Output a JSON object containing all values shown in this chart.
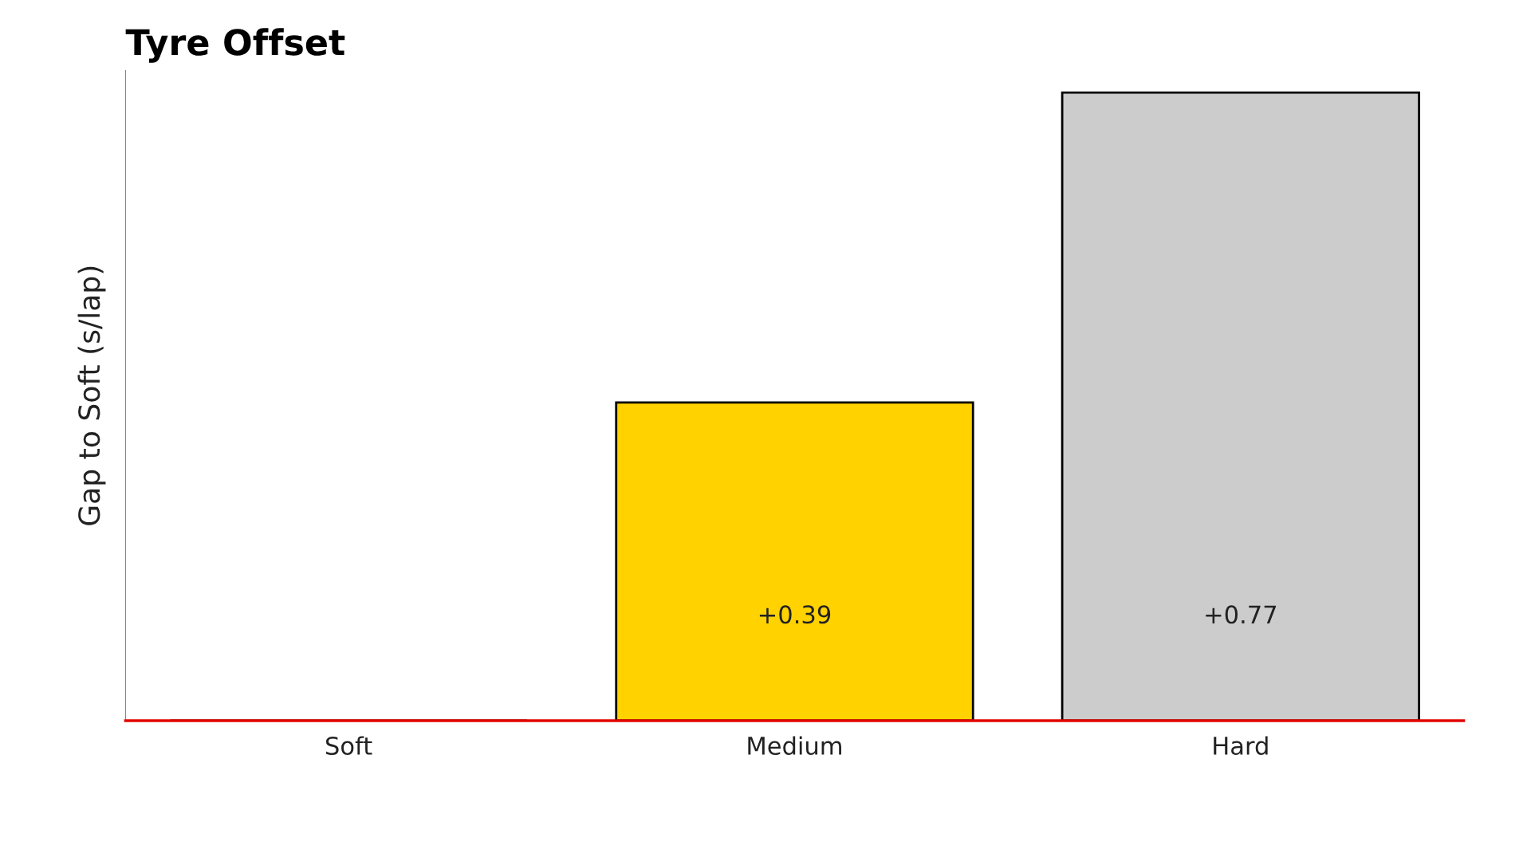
{
  "chart_data": {
    "type": "bar",
    "title": "Tyre Offset",
    "ylabel": "Gap to Soft (s/lap)",
    "categories": [
      "Soft",
      "Medium",
      "Hard"
    ],
    "values": [
      0,
      0.39,
      0.77
    ],
    "colors": [
      "#e10600",
      "#ffd200",
      "#cccccc"
    ],
    "value_labels": [
      null,
      "+0.39",
      "+0.77"
    ],
    "ref_lines": [
      {
        "axis": "y",
        "value": 0,
        "color": "#e10600"
      }
    ],
    "grid": false,
    "legend": false
  }
}
